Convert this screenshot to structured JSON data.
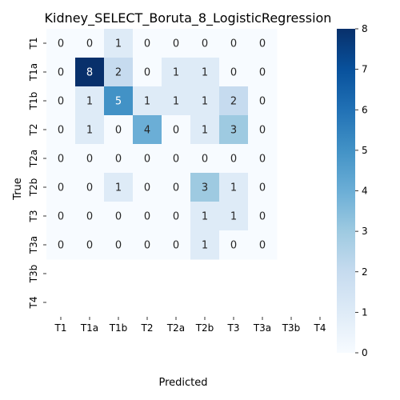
{
  "chart_data": {
    "type": "heatmap",
    "title": "Kidney_SELECT_Boruta_8_LogisticRegression",
    "xlabel": "Predicted",
    "ylabel": "True",
    "x_categories": [
      "T1",
      "T1a",
      "T1b",
      "T2",
      "T2a",
      "T2b",
      "T3",
      "T3a",
      "T3b",
      "T4"
    ],
    "y_categories": [
      "T1",
      "T1a",
      "T1b",
      "T2",
      "T2a",
      "T2b",
      "T3",
      "T3a",
      "T3b",
      "T4"
    ],
    "values": [
      [
        0,
        0,
        1,
        0,
        0,
        0,
        0,
        0,
        null,
        null
      ],
      [
        0,
        8,
        2,
        0,
        1,
        1,
        0,
        0,
        null,
        null
      ],
      [
        0,
        1,
        5,
        1,
        1,
        1,
        2,
        0,
        null,
        null
      ],
      [
        0,
        1,
        0,
        4,
        0,
        1,
        3,
        0,
        null,
        null
      ],
      [
        0,
        0,
        0,
        0,
        0,
        0,
        0,
        0,
        null,
        null
      ],
      [
        0,
        0,
        1,
        0,
        0,
        3,
        1,
        0,
        null,
        null
      ],
      [
        0,
        0,
        0,
        0,
        0,
        1,
        1,
        0,
        null,
        null
      ],
      [
        0,
        0,
        0,
        0,
        0,
        1,
        0,
        0,
        null,
        null
      ],
      [
        null,
        null,
        null,
        null,
        null,
        null,
        null,
        null,
        null,
        null
      ],
      [
        null,
        null,
        null,
        null,
        null,
        null,
        null,
        null,
        null,
        null
      ]
    ],
    "colormap": "Blues",
    "colorbar_range": [
      0,
      8
    ],
    "colorbar_ticks": [
      "0",
      "1",
      "2",
      "3",
      "4",
      "5",
      "6",
      "7",
      "8"
    ],
    "colors": {
      "low": "#f7fbff",
      "high": "#08306b"
    }
  }
}
